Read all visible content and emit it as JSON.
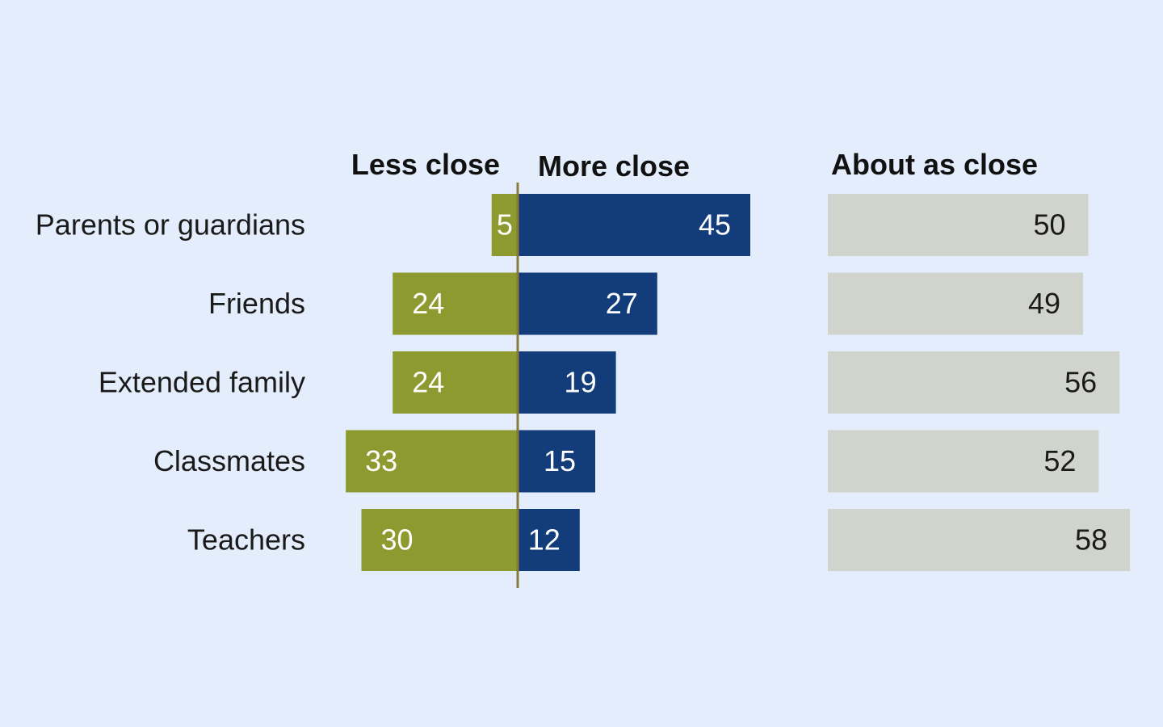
{
  "chart_data": {
    "type": "bar",
    "title": "",
    "categories": [
      "Parents or guardians",
      "Friends",
      "Extended family",
      "Classmates",
      "Teachers"
    ],
    "series": [
      {
        "name": "Less close",
        "values": [
          5,
          24,
          24,
          33,
          30
        ],
        "color": "#8c9a2f"
      },
      {
        "name": "More close",
        "values": [
          45,
          27,
          19,
          15,
          12
        ],
        "color": "#123d7a"
      },
      {
        "name": "About as close",
        "values": [
          50,
          49,
          56,
          52,
          58
        ],
        "color": "#d1d4cd"
      }
    ],
    "grid": false,
    "axis_color": "#8a7a3a",
    "legend": "column-headers"
  }
}
